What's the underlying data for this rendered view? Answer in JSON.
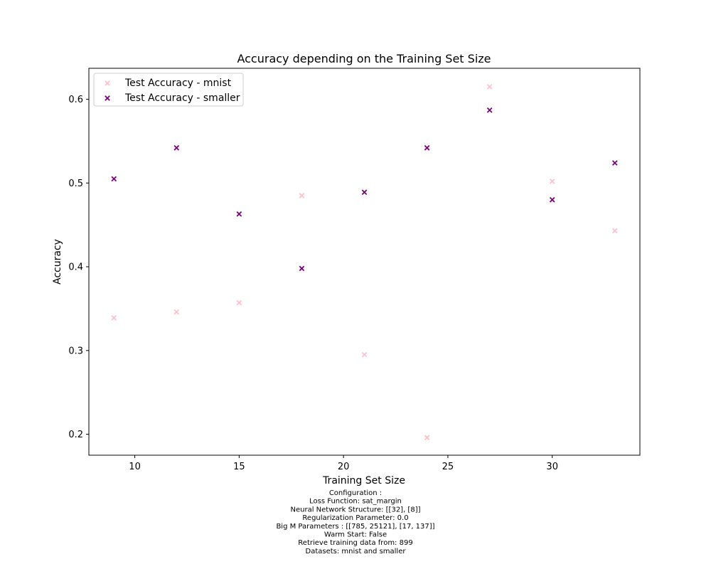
{
  "chart_data": {
    "type": "scatter",
    "title": "Accuracy depending on the Training Set Size",
    "xlabel": "Training Set Size",
    "ylabel": "Accuracy",
    "xlim": [
      7.8,
      34.2
    ],
    "ylim": [
      0.175,
      0.637
    ],
    "xticks": [
      10,
      15,
      20,
      25,
      30
    ],
    "yticks": [
      0.2,
      0.3,
      0.4,
      0.5,
      0.6
    ],
    "grid": false,
    "legend_position": "top-left",
    "marker": "x",
    "series": [
      {
        "name": "Test Accuracy - mnist",
        "color": "#ffc0cb",
        "x": [
          9,
          12,
          15,
          18,
          21,
          24,
          27,
          30,
          33
        ],
        "y": [
          0.339,
          0.346,
          0.357,
          0.485,
          0.295,
          0.196,
          0.615,
          0.502,
          0.443
        ]
      },
      {
        "name": "Test Accuracy - smaller",
        "color": "#800080",
        "x": [
          9,
          12,
          15,
          18,
          21,
          24,
          27,
          30,
          33
        ],
        "y": [
          0.505,
          0.542,
          0.463,
          0.398,
          0.489,
          0.542,
          0.587,
          0.48,
          0.524
        ]
      }
    ]
  },
  "caption_lines": [
    "Configuration :",
    "Loss Function: sat_margin",
    "Neural Network Structure: [[32], [8]]",
    "Regularization Parameter: 0.0",
    "Big M Parameters : [[785, 25121], [17, 137]]",
    "Warm Start: False",
    "Retrieve training data from: 899",
    "Datasets: mnist and smaller"
  ]
}
